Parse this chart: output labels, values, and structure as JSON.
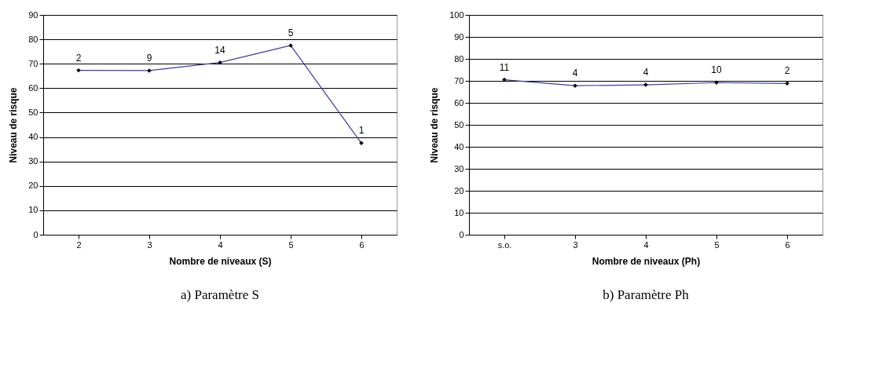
{
  "chart_data": [
    {
      "type": "line",
      "xlabel": "Nombre de niveaux (S)",
      "ylabel": "Niveau de risque",
      "categories": [
        "2",
        "3",
        "4",
        "5",
        "6"
      ],
      "series": [
        {
          "color": "#3c3ca8",
          "values": [
            67.3,
            67.2,
            70.5,
            77.5,
            37.5
          ]
        }
      ],
      "ylim": [
        0,
        90
      ],
      "yticks": [
        0,
        10,
        20,
        30,
        40,
        50,
        60,
        70,
        80,
        90
      ],
      "grid": "y",
      "marker": "diamond",
      "annotations": [
        {
          "text": "2",
          "x": "2",
          "y": 67.3
        },
        {
          "text": "9",
          "x": "3",
          "y": 67.2
        },
        {
          "text": "14",
          "x": "4",
          "y": 70.5
        },
        {
          "text": "5",
          "x": "5",
          "y": 77.5
        },
        {
          "text": "1",
          "x": "6",
          "y": 37.5
        },
        "a) Paramètre S"
      ]
    },
    {
      "type": "line",
      "xlabel": "Nombre de niveaux (Ph)",
      "ylabel": "Niveau de risque",
      "categories": [
        "s.o.",
        "3",
        "4",
        "5",
        "6"
      ],
      "series": [
        {
          "color": "#3c3ca8",
          "values": [
            70.5,
            67.8,
            68.2,
            69.2,
            68.8
          ]
        }
      ],
      "ylim": [
        0,
        100
      ],
      "yticks": [
        0,
        10,
        20,
        30,
        40,
        50,
        60,
        70,
        80,
        90,
        100
      ],
      "grid": "y",
      "marker": "diamond",
      "annotations": [
        {
          "text": "11",
          "x": "s.o.",
          "y": 70.5
        },
        {
          "text": "4",
          "x": "3",
          "y": 67.8
        },
        {
          "text": "4",
          "x": "4",
          "y": 68.2
        },
        {
          "text": "10",
          "x": "5",
          "y": 69.2
        },
        {
          "text": "2",
          "x": "6",
          "y": 68.8
        },
        "b) Paramètre Ph"
      ]
    }
  ]
}
